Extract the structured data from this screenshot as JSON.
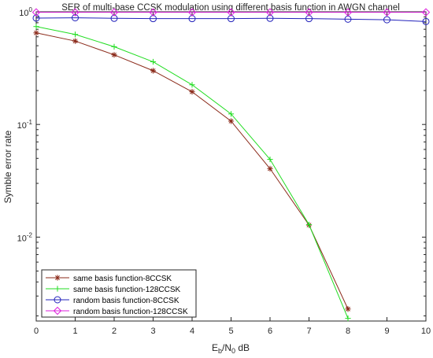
{
  "chart_data": {
    "type": "line",
    "title": "SER of multi-base CCSK modulation using different basis function in AWGN channel",
    "xlabel": {
      "base": "E",
      "base_sub": "b",
      "sep": "/N",
      "sep_sub": "0",
      "unit": " dB"
    },
    "ylabel": "Symble error rate",
    "x_ticks": [
      "0",
      "1",
      "2",
      "3",
      "4",
      "5",
      "6",
      "7",
      "8",
      "9",
      "10"
    ],
    "y_tick_labels": [
      {
        "value": 1,
        "base": "10",
        "exp": "0"
      },
      {
        "value": 0.1,
        "base": "10",
        "exp": "-1"
      },
      {
        "value": 0.01,
        "base": "10",
        "exp": "-2"
      }
    ],
    "xlim": [
      0,
      10
    ],
    "ylim": [
      0.0018,
      1
    ],
    "yscale": "log",
    "grid": false,
    "legend_position": "bottom-left",
    "series": [
      {
        "name": "same basis function-8CCSK",
        "color": "#8B2A1A",
        "marker": "asterisk",
        "x": [
          0,
          1,
          2,
          3,
          4,
          5,
          6,
          7,
          8
        ],
        "y": [
          0.65,
          0.55,
          0.415,
          0.3,
          0.195,
          0.107,
          0.0405,
          0.0128,
          0.0023
        ]
      },
      {
        "name": "same basis function-128CCSK",
        "color": "#22DD22",
        "marker": "plus",
        "x": [
          0,
          1,
          2,
          3,
          4,
          5,
          6,
          7,
          8
        ],
        "y": [
          0.74,
          0.63,
          0.49,
          0.36,
          0.225,
          0.124,
          0.049,
          0.0129,
          0.0019
        ]
      },
      {
        "name": "random basis function-8CCSK",
        "color": "#2222BB",
        "marker": "circle",
        "x": [
          0,
          1,
          2,
          3,
          4,
          5,
          6,
          7,
          8,
          9,
          10
        ],
        "y": [
          0.88,
          0.885,
          0.875,
          0.87,
          0.87,
          0.87,
          0.875,
          0.87,
          0.86,
          0.85,
          0.82
        ]
      },
      {
        "name": "random basis function-128CCSK",
        "color": "#DD22DD",
        "marker": "diamond",
        "x": [
          0,
          1,
          2,
          3,
          4,
          5,
          6,
          7,
          8,
          9,
          10
        ],
        "y": [
          0.99,
          0.99,
          0.99,
          0.99,
          0.99,
          0.99,
          0.99,
          0.99,
          0.99,
          0.99,
          0.99
        ]
      }
    ]
  }
}
